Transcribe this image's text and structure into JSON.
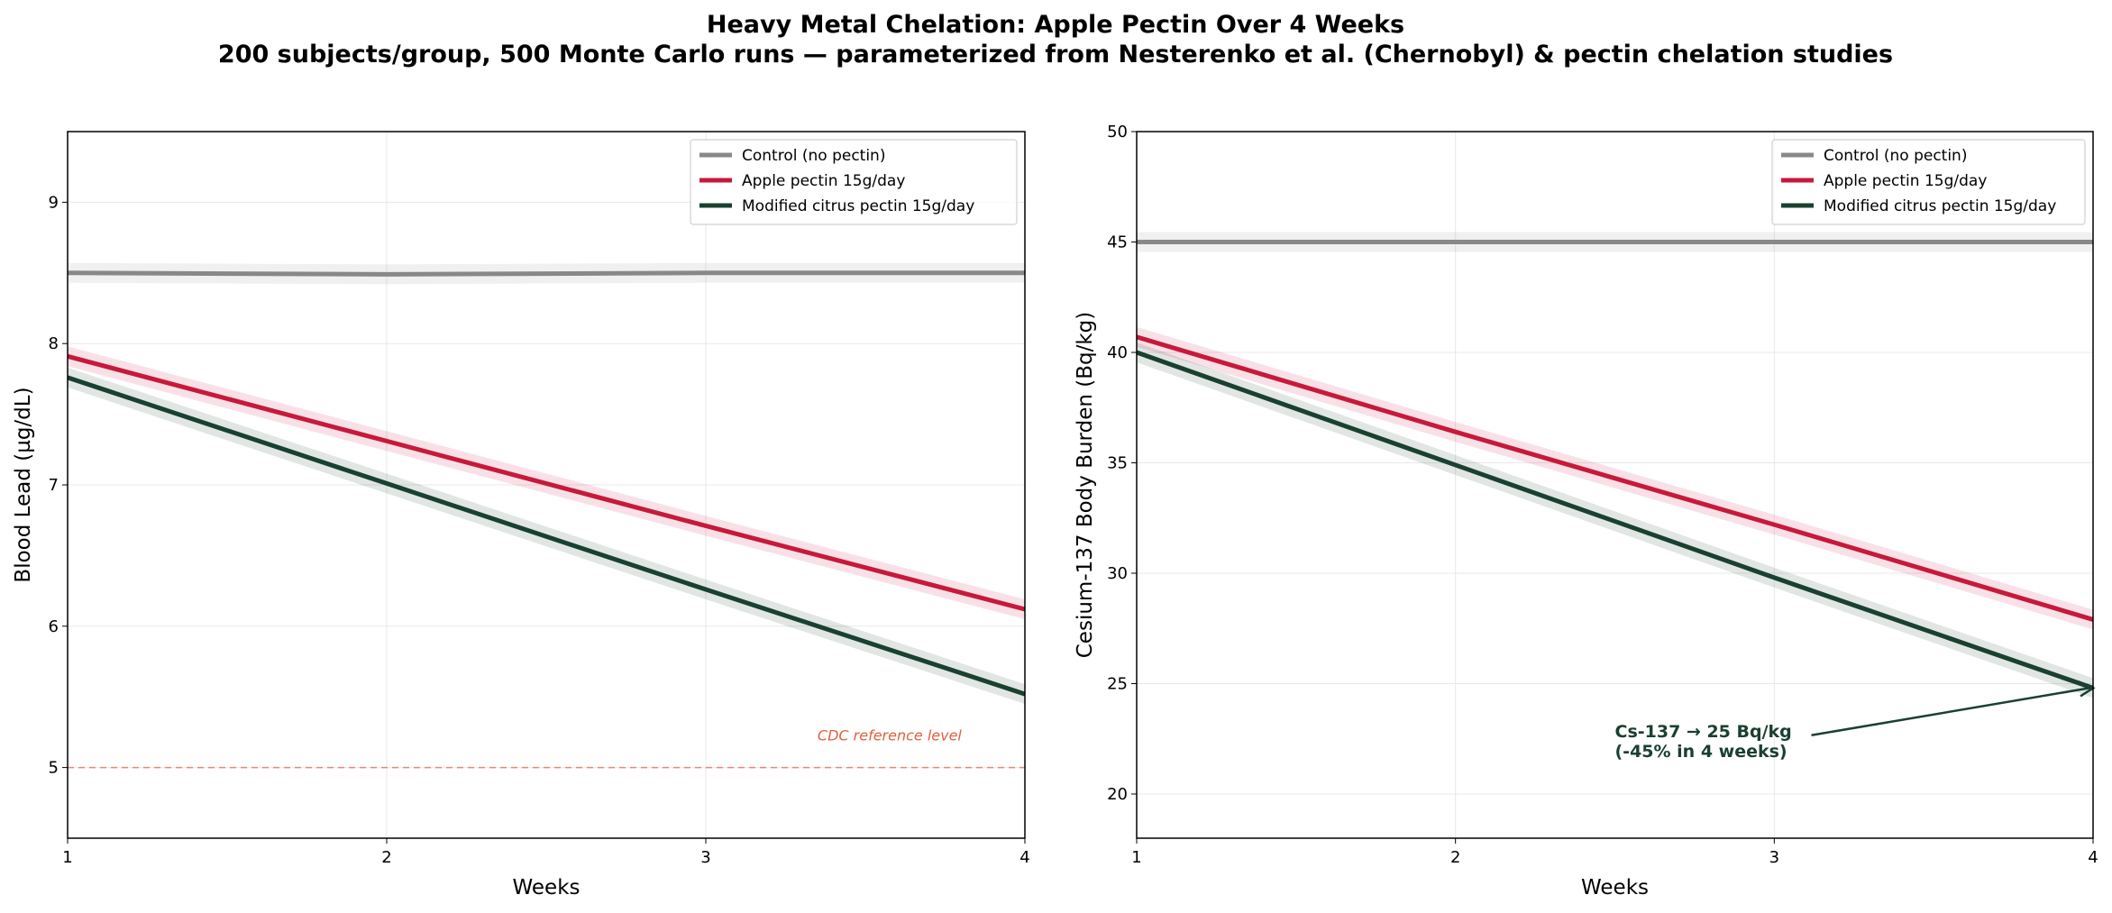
{
  "title": "Heavy Metal Chelation: Apple Pectin Over 4 Weeks",
  "subtitle": "200 subjects/group, 500 Monte Carlo runs — parameterized from Nesterenko et al. (Chernobyl) & pectin chelation studies",
  "colors": {
    "control": "#888888",
    "apple": "#c8193a",
    "mcp": "#1a4030",
    "cdc": "#e06040"
  },
  "chart_data": [
    {
      "type": "line",
      "xlabel": "Weeks",
      "ylabel": "Blood Lead (µg/dL)",
      "x": [
        1,
        2,
        3,
        4
      ],
      "xlim": [
        1,
        4
      ],
      "ylim": [
        4.5,
        9.5
      ],
      "xticks": [
        1,
        2,
        3,
        4
      ],
      "yticks": [
        5,
        6,
        7,
        8,
        9
      ],
      "grid": true,
      "legend": "top-right",
      "series": [
        {
          "name": "Control (no pectin)",
          "key": "control",
          "values": [
            8.5,
            8.49,
            8.5,
            8.5
          ],
          "band": 0.07
        },
        {
          "name": "Apple pectin 15g/day",
          "key": "apple",
          "values": [
            7.91,
            7.31,
            6.71,
            6.12
          ],
          "band": 0.07
        },
        {
          "name": "Modified citrus pectin 15g/day",
          "key": "mcp",
          "values": [
            7.76,
            7.01,
            6.26,
            5.52
          ],
          "band": 0.07
        }
      ],
      "reference": {
        "value": 5,
        "label": "CDC reference level"
      }
    },
    {
      "type": "line",
      "xlabel": "Weeks",
      "ylabel": "Cesium-137 Body Burden (Bq/kg)",
      "x": [
        1,
        2,
        3,
        4
      ],
      "xlim": [
        1,
        4
      ],
      "ylim": [
        18,
        50
      ],
      "xticks": [
        1,
        2,
        3,
        4
      ],
      "yticks": [
        20,
        25,
        30,
        35,
        40,
        45,
        50
      ],
      "grid": true,
      "legend": "top-right",
      "series": [
        {
          "name": "Control (no pectin)",
          "key": "control",
          "values": [
            45.0,
            45.0,
            45.0,
            45.0
          ],
          "band": 0.45
        },
        {
          "name": "Apple pectin 15g/day",
          "key": "apple",
          "values": [
            40.7,
            36.4,
            32.2,
            27.9
          ],
          "band": 0.45
        },
        {
          "name": "Modified citrus pectin 15g/day",
          "key": "mcp",
          "values": [
            40.0,
            34.9,
            29.8,
            24.8
          ],
          "band": 0.45
        }
      ],
      "annotation": {
        "line1": "Cs-137 → 25 Bq/kg",
        "line2": "(-45% in 4 weeks)",
        "x": 4,
        "y": 24.8,
        "text_x": 2.5,
        "text_y": 22.5
      }
    }
  ]
}
